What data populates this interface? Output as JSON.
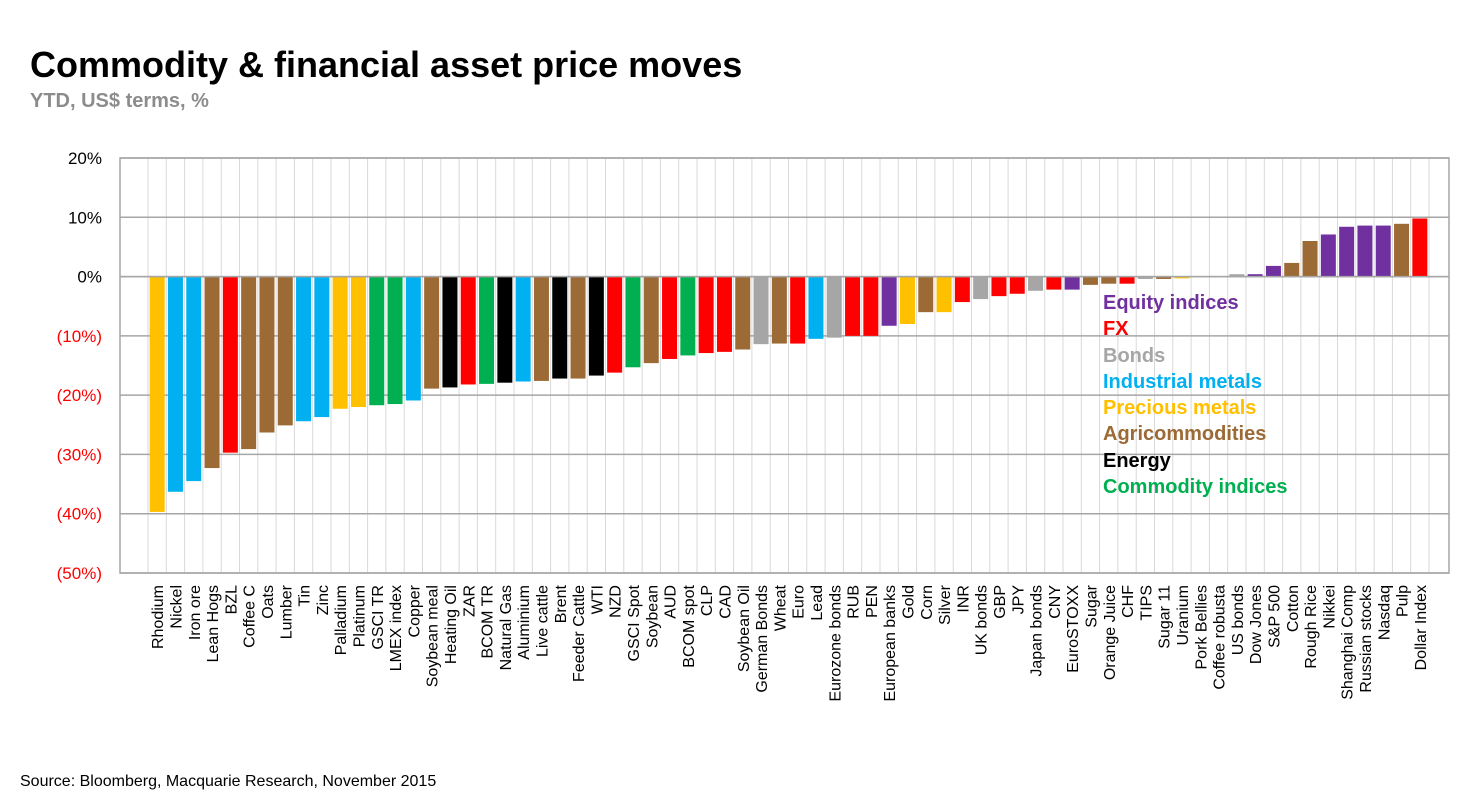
{
  "title": "Commodity & financial asset price moves",
  "subtitle": "YTD, US$ terms, %",
  "source": "Source: Bloomberg, Macquarie Research, November 2015",
  "colors": {
    "equity": "#7030a0",
    "fx": "#ff0000",
    "bonds": "#a6a6a6",
    "industrial": "#00b0f0",
    "precious": "#ffc000",
    "agri": "#9c6a35",
    "energy": "#000000",
    "commodity_index": "#00b050",
    "negative_tick": "#ff0000",
    "positive_tick": "#000000"
  },
  "legend": [
    {
      "label": "Equity indices",
      "group": "equity"
    },
    {
      "label": "FX",
      "group": "fx"
    },
    {
      "label": "Bonds",
      "group": "bonds"
    },
    {
      "label": "Industrial metals",
      "group": "industrial"
    },
    {
      "label": "Precious metals",
      "group": "precious"
    },
    {
      "label": "Agricommodities",
      "group": "agri"
    },
    {
      "label": "Energy",
      "group": "energy"
    },
    {
      "label": "Commodity indices",
      "group": "commodity_index"
    }
  ],
  "chart_data": {
    "type": "bar",
    "title": "Commodity & financial asset price moves",
    "subtitle": "YTD, US$ terms, %",
    "ylabel": "",
    "xlabel": "",
    "ylim": [
      -50,
      20
    ],
    "yticks": [
      20,
      10,
      0,
      -10,
      -20,
      -30,
      -40,
      -50
    ],
    "ytick_labels": [
      "20%",
      "10%",
      "0%",
      "(10%)",
      "(20%)",
      "(30%)",
      "(40%)",
      "(50%)"
    ],
    "grid": true,
    "categories": [
      "Rhodium",
      "Nickel",
      "Iron ore",
      "Lean Hogs",
      "BZL",
      "Coffee C",
      "Oats",
      "Lumber",
      "Tin",
      "Zinc",
      "Palladium",
      "Platinum",
      "GSCI TR",
      "LMEX index",
      "Copper",
      "Soybean meal",
      "Heating Oil",
      "ZAR",
      "BCOM TR",
      "Natural Gas",
      "Aluminium",
      "Live cattle",
      "Brent",
      "Feeder Cattle",
      "WTI",
      "NZD",
      "GSCI Spot",
      "Soybean",
      "AUD",
      "BCOM spot",
      "CLP",
      "CAD",
      "Soybean Oil",
      "German Bonds",
      "Wheat",
      "Euro",
      "Lead",
      "Eurozone bonds",
      "RUB",
      "PEN",
      "European banks",
      "Gold",
      "Corn",
      "Silver",
      "INR",
      "UK bonds",
      "GBP",
      "JPY",
      "Japan bonds",
      "CNY",
      "EuroSTOXX",
      "Sugar",
      "Orange Juice",
      "CHF",
      "TIPS",
      "Sugar 11",
      "Uranium",
      "Pork Bellies",
      "Coffee robusta",
      "US bonds",
      "Dow Jones",
      "S&P 500",
      "Cotton",
      "Rough Rice",
      "Nikkei",
      "Shanghai Comp",
      "Russian stocks",
      "Nasdaq",
      "Pulp",
      "Dollar Index"
    ],
    "values": [
      -39.7,
      -36.3,
      -34.5,
      -32.3,
      -29.7,
      -29.1,
      -26.3,
      -25.1,
      -24.4,
      -23.7,
      -22.3,
      -22.0,
      -21.7,
      -21.5,
      -20.9,
      -18.9,
      -18.7,
      -18.2,
      -18.1,
      -17.9,
      -17.7,
      -17.6,
      -17.2,
      -17.2,
      -16.7,
      -16.2,
      -15.3,
      -14.6,
      -13.9,
      -13.3,
      -12.9,
      -12.7,
      -12.3,
      -11.4,
      -11.3,
      -11.3,
      -10.5,
      -10.3,
      -10.0,
      -10.0,
      -8.3,
      -8.0,
      -6.0,
      -6.0,
      -4.3,
      -3.8,
      -3.3,
      -2.9,
      -2.4,
      -2.2,
      -2.2,
      -1.4,
      -1.2,
      -1.2,
      -0.4,
      -0.4,
      -0.3,
      0.0,
      0.0,
      0.4,
      0.4,
      1.8,
      2.3,
      6.0,
      7.1,
      8.4,
      8.6,
      8.6,
      8.9,
      9.8
    ],
    "groups": [
      "precious",
      "industrial",
      "industrial",
      "agri",
      "fx",
      "agri",
      "agri",
      "agri",
      "industrial",
      "industrial",
      "precious",
      "precious",
      "commodity_index",
      "commodity_index",
      "industrial",
      "agri",
      "energy",
      "fx",
      "commodity_index",
      "energy",
      "industrial",
      "agri",
      "energy",
      "agri",
      "energy",
      "fx",
      "commodity_index",
      "agri",
      "fx",
      "commodity_index",
      "fx",
      "fx",
      "agri",
      "bonds",
      "agri",
      "fx",
      "industrial",
      "bonds",
      "fx",
      "fx",
      "equity",
      "precious",
      "agri",
      "precious",
      "fx",
      "bonds",
      "fx",
      "fx",
      "bonds",
      "fx",
      "equity",
      "agri",
      "agri",
      "fx",
      "bonds",
      "agri",
      "precious",
      "agri",
      "agri",
      "bonds",
      "equity",
      "equity",
      "agri",
      "agri",
      "equity",
      "equity",
      "equity",
      "equity",
      "agri",
      "fx"
    ]
  }
}
